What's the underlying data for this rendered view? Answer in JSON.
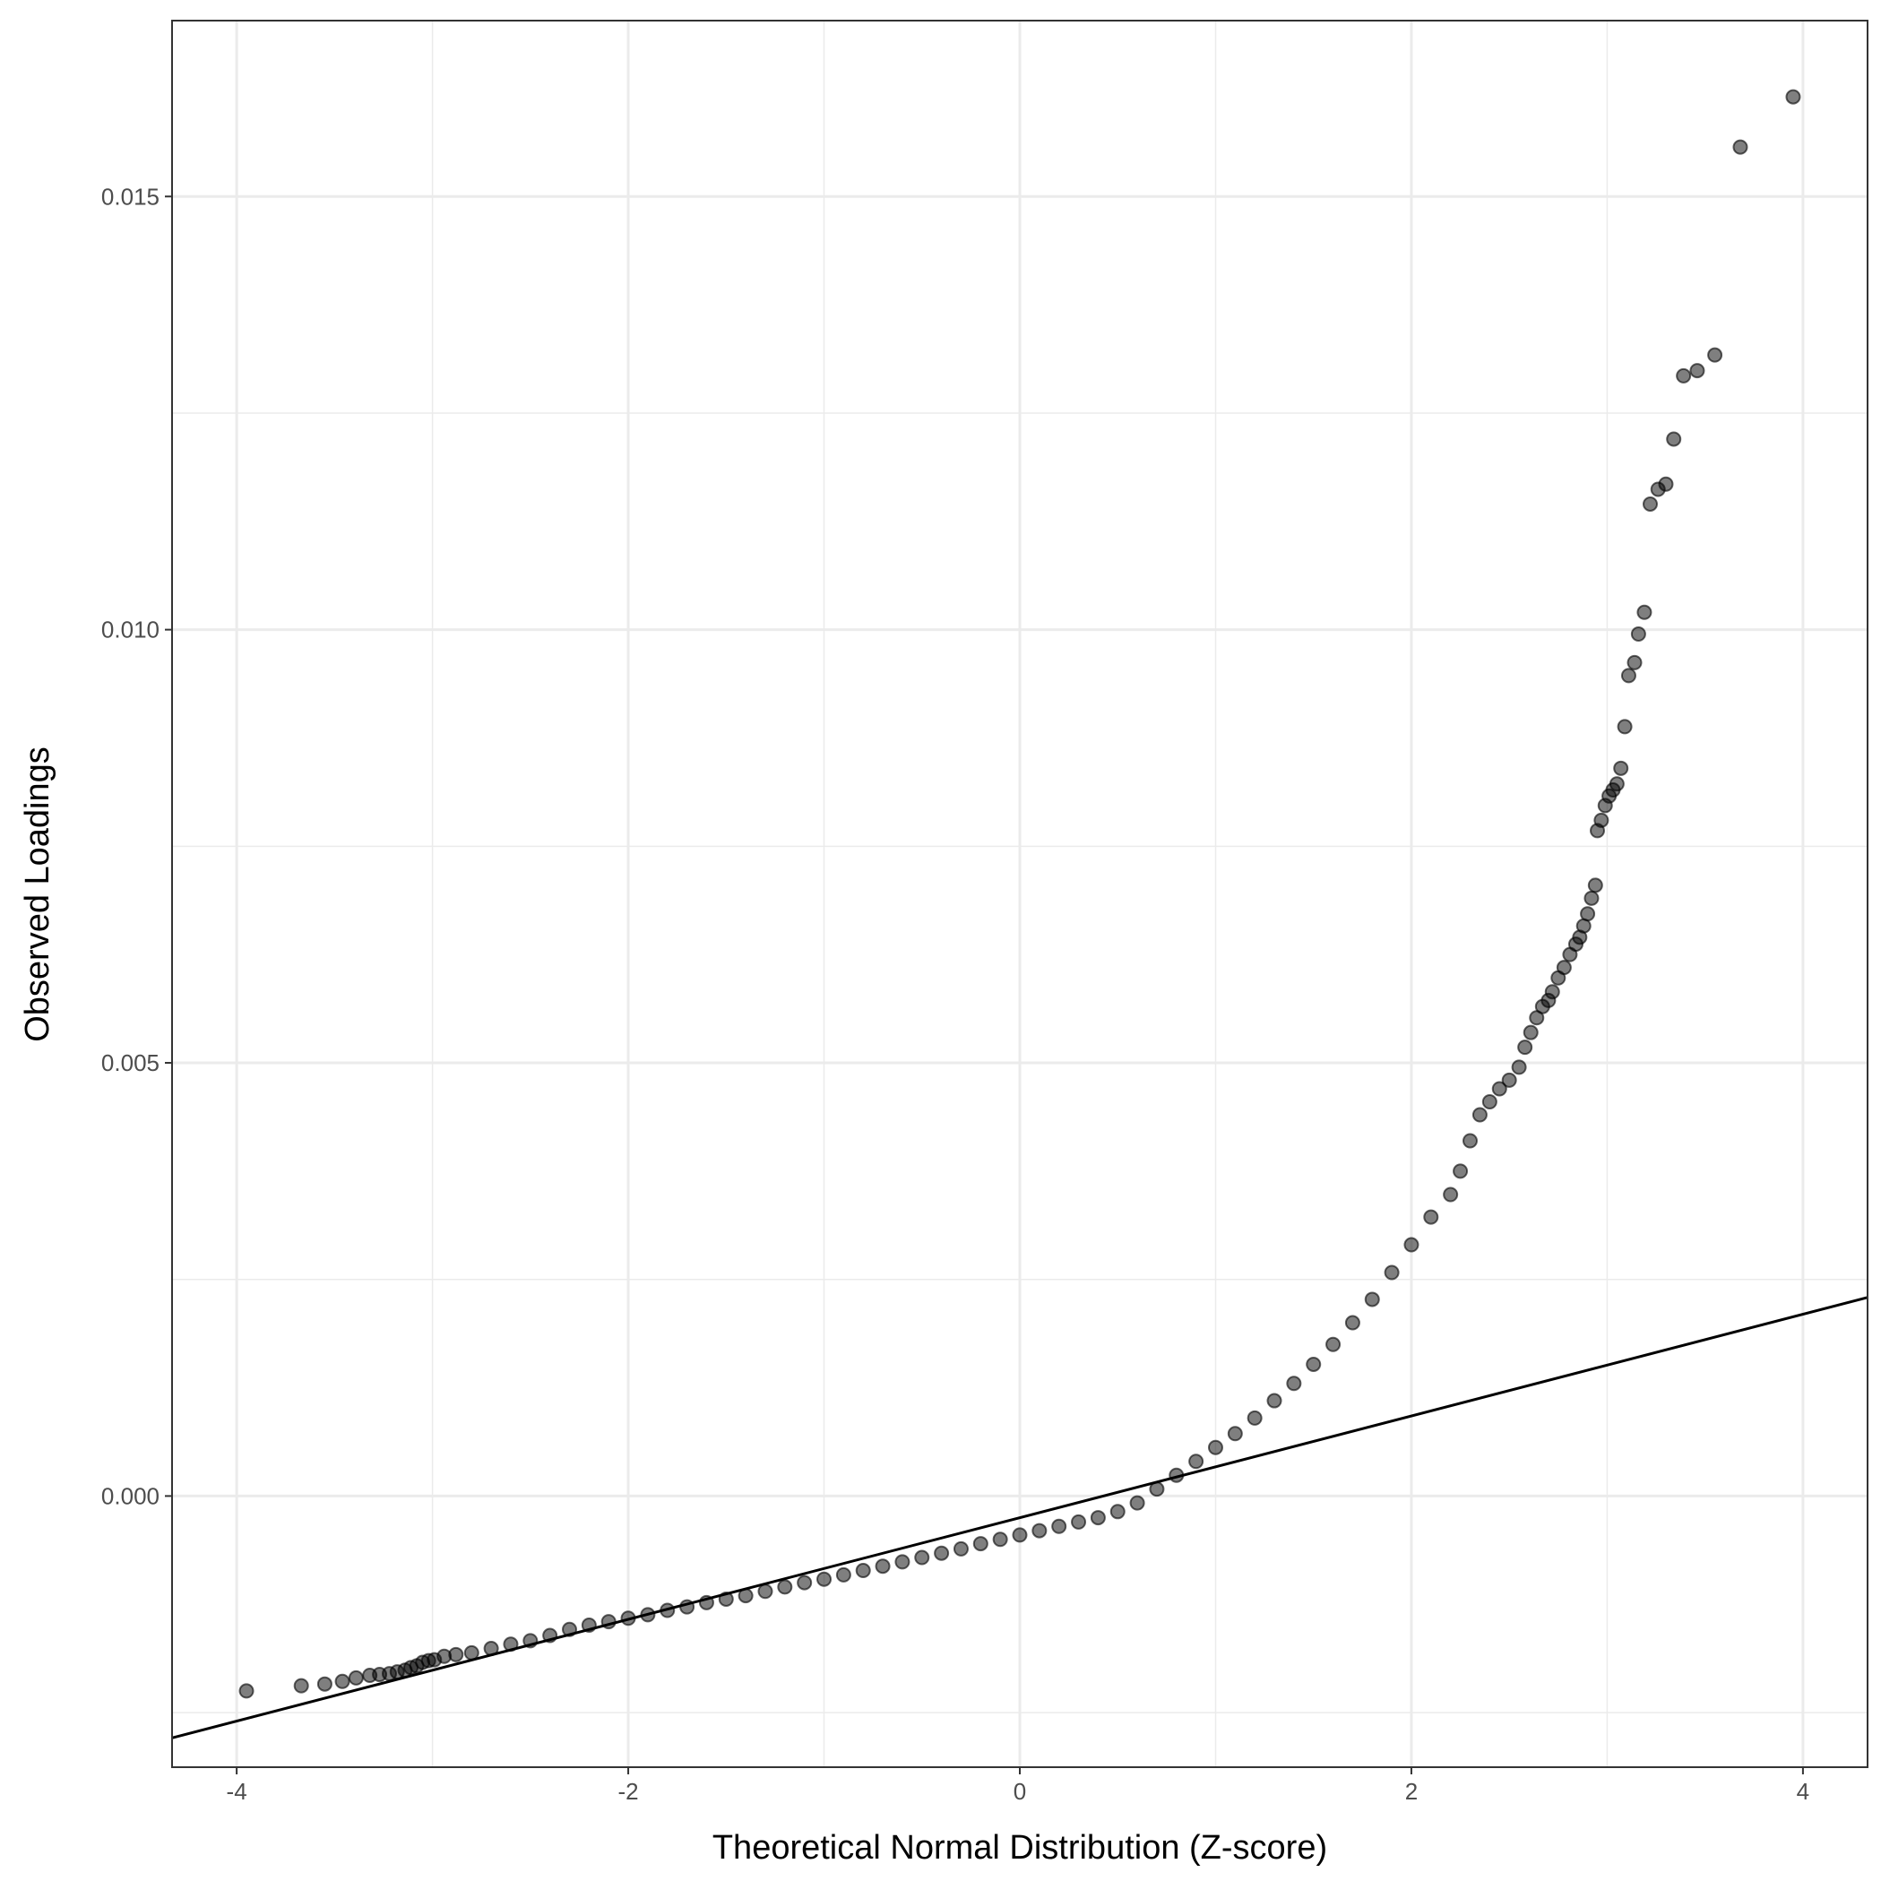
{
  "chart_data": {
    "type": "scatter",
    "title": "",
    "xlabel": "Theoretical Normal Distribution (Z-score)",
    "ylabel": "Observed Loadings",
    "xlim": [
      -4.33,
      4.33
    ],
    "ylim": [
      -0.00313,
      0.01703
    ],
    "x_ticks": [
      -4,
      -2,
      0,
      2,
      4
    ],
    "x_tick_labels": [
      "-4",
      "-2",
      "0",
      "2",
      "4"
    ],
    "x_minor_ticks": [
      -3,
      -1,
      1,
      3
    ],
    "y_ticks": [
      0.0,
      0.005,
      0.01,
      0.015
    ],
    "y_tick_labels": [
      "0.000",
      "0.005",
      "0.010",
      "0.015"
    ],
    "y_minor_ticks": [
      -0.0025,
      0.0025,
      0.0075,
      0.0125
    ],
    "grid": true,
    "legend": "none",
    "point_color": "#000000",
    "point_opacity": 0.5,
    "reference_line": {
      "intercept": -0.00025,
      "slope": 0.000587,
      "color": "#000000"
    },
    "series": [
      {
        "points": [
          [
            -3.95,
            -0.00225
          ],
          [
            -3.67,
            -0.00219
          ],
          [
            -3.55,
            -0.00217
          ],
          [
            -3.46,
            -0.00214
          ],
          [
            -3.39,
            -0.0021
          ],
          [
            -3.32,
            -0.00207
          ],
          [
            -3.27,
            -0.00206
          ],
          [
            -3.22,
            -0.00205
          ],
          [
            -3.18,
            -0.00203
          ],
          [
            -3.14,
            -0.00201
          ],
          [
            -3.11,
            -0.00198
          ],
          [
            -3.08,
            -0.00196
          ],
          [
            -3.05,
            -0.00192
          ],
          [
            -3.02,
            -0.0019
          ],
          [
            -2.99,
            -0.00189
          ],
          [
            -2.94,
            -0.00185
          ],
          [
            -2.88,
            -0.00183
          ],
          [
            -2.8,
            -0.00181
          ],
          [
            -2.7,
            -0.00176
          ],
          [
            -2.6,
            -0.00171
          ],
          [
            -2.5,
            -0.00167
          ],
          [
            -2.4,
            -0.00161
          ],
          [
            -2.3,
            -0.00154
          ],
          [
            -2.2,
            -0.00149
          ],
          [
            -2.1,
            -0.00145
          ],
          [
            -2.0,
            -0.00141
          ],
          [
            -1.9,
            -0.00137
          ],
          [
            -1.8,
            -0.00132
          ],
          [
            -1.7,
            -0.00128
          ],
          [
            -1.6,
            -0.00123
          ],
          [
            -1.5,
            -0.00119
          ],
          [
            -1.4,
            -0.00115
          ],
          [
            -1.3,
            -0.0011
          ],
          [
            -1.2,
            -0.00105
          ],
          [
            -1.1,
            -0.001
          ],
          [
            -1.0,
            -0.00096
          ],
          [
            -0.9,
            -0.00091
          ],
          [
            -0.8,
            -0.00086
          ],
          [
            -0.7,
            -0.00081
          ],
          [
            -0.6,
            -0.00076
          ],
          [
            -0.5,
            -0.00071
          ],
          [
            -0.4,
            -0.00066
          ],
          [
            -0.3,
            -0.00061
          ],
          [
            -0.2,
            -0.00055
          ],
          [
            -0.1,
            -0.0005
          ],
          [
            0.0,
            -0.00045
          ],
          [
            0.1,
            -0.0004
          ],
          [
            0.2,
            -0.00035
          ],
          [
            0.3,
            -0.0003
          ],
          [
            0.4,
            -0.00025
          ],
          [
            0.5,
            -0.00018
          ],
          [
            0.6,
            -8e-05
          ],
          [
            0.7,
            8e-05
          ],
          [
            0.8,
            0.00024
          ],
          [
            0.9,
            0.0004
          ],
          [
            1.0,
            0.00056
          ],
          [
            1.1,
            0.00072
          ],
          [
            1.2,
            0.0009
          ],
          [
            1.3,
            0.0011
          ],
          [
            1.4,
            0.0013
          ],
          [
            1.5,
            0.00152
          ],
          [
            1.6,
            0.00175
          ],
          [
            1.7,
            0.002
          ],
          [
            1.8,
            0.00227
          ],
          [
            1.9,
            0.00258
          ],
          [
            2.0,
            0.0029
          ],
          [
            2.1,
            0.00322
          ],
          [
            2.2,
            0.00348
          ],
          [
            2.25,
            0.00375
          ],
          [
            2.3,
            0.0041
          ],
          [
            2.35,
            0.0044
          ],
          [
            2.4,
            0.00455
          ],
          [
            2.45,
            0.0047
          ],
          [
            2.5,
            0.0048
          ],
          [
            2.55,
            0.00495
          ],
          [
            2.58,
            0.00518
          ],
          [
            2.61,
            0.00535
          ],
          [
            2.64,
            0.00552
          ],
          [
            2.67,
            0.00565
          ],
          [
            2.7,
            0.00572
          ],
          [
            2.72,
            0.00582
          ],
          [
            2.75,
            0.00598
          ],
          [
            2.78,
            0.0061
          ],
          [
            2.81,
            0.00625
          ],
          [
            2.84,
            0.00637
          ],
          [
            2.86,
            0.00645
          ],
          [
            2.88,
            0.00658
          ],
          [
            2.9,
            0.00672
          ],
          [
            2.92,
            0.0069
          ],
          [
            2.94,
            0.00705
          ],
          [
            2.95,
            0.00768
          ],
          [
            2.97,
            0.0078
          ],
          [
            2.99,
            0.00797
          ],
          [
            3.01,
            0.00808
          ],
          [
            3.03,
            0.00815
          ],
          [
            3.05,
            0.00822
          ],
          [
            3.07,
            0.0084
          ],
          [
            3.09,
            0.00888
          ],
          [
            3.11,
            0.00947
          ],
          [
            3.14,
            0.00962
          ],
          [
            3.16,
            0.00995
          ],
          [
            3.19,
            0.0102
          ],
          [
            3.22,
            0.01145
          ],
          [
            3.26,
            0.01162
          ],
          [
            3.3,
            0.01168
          ],
          [
            3.34,
            0.0122
          ],
          [
            3.39,
            0.01293
          ],
          [
            3.46,
            0.01299
          ],
          [
            3.55,
            0.01317
          ],
          [
            3.68,
            0.01557
          ],
          [
            3.95,
            0.01615
          ]
        ]
      }
    ]
  }
}
